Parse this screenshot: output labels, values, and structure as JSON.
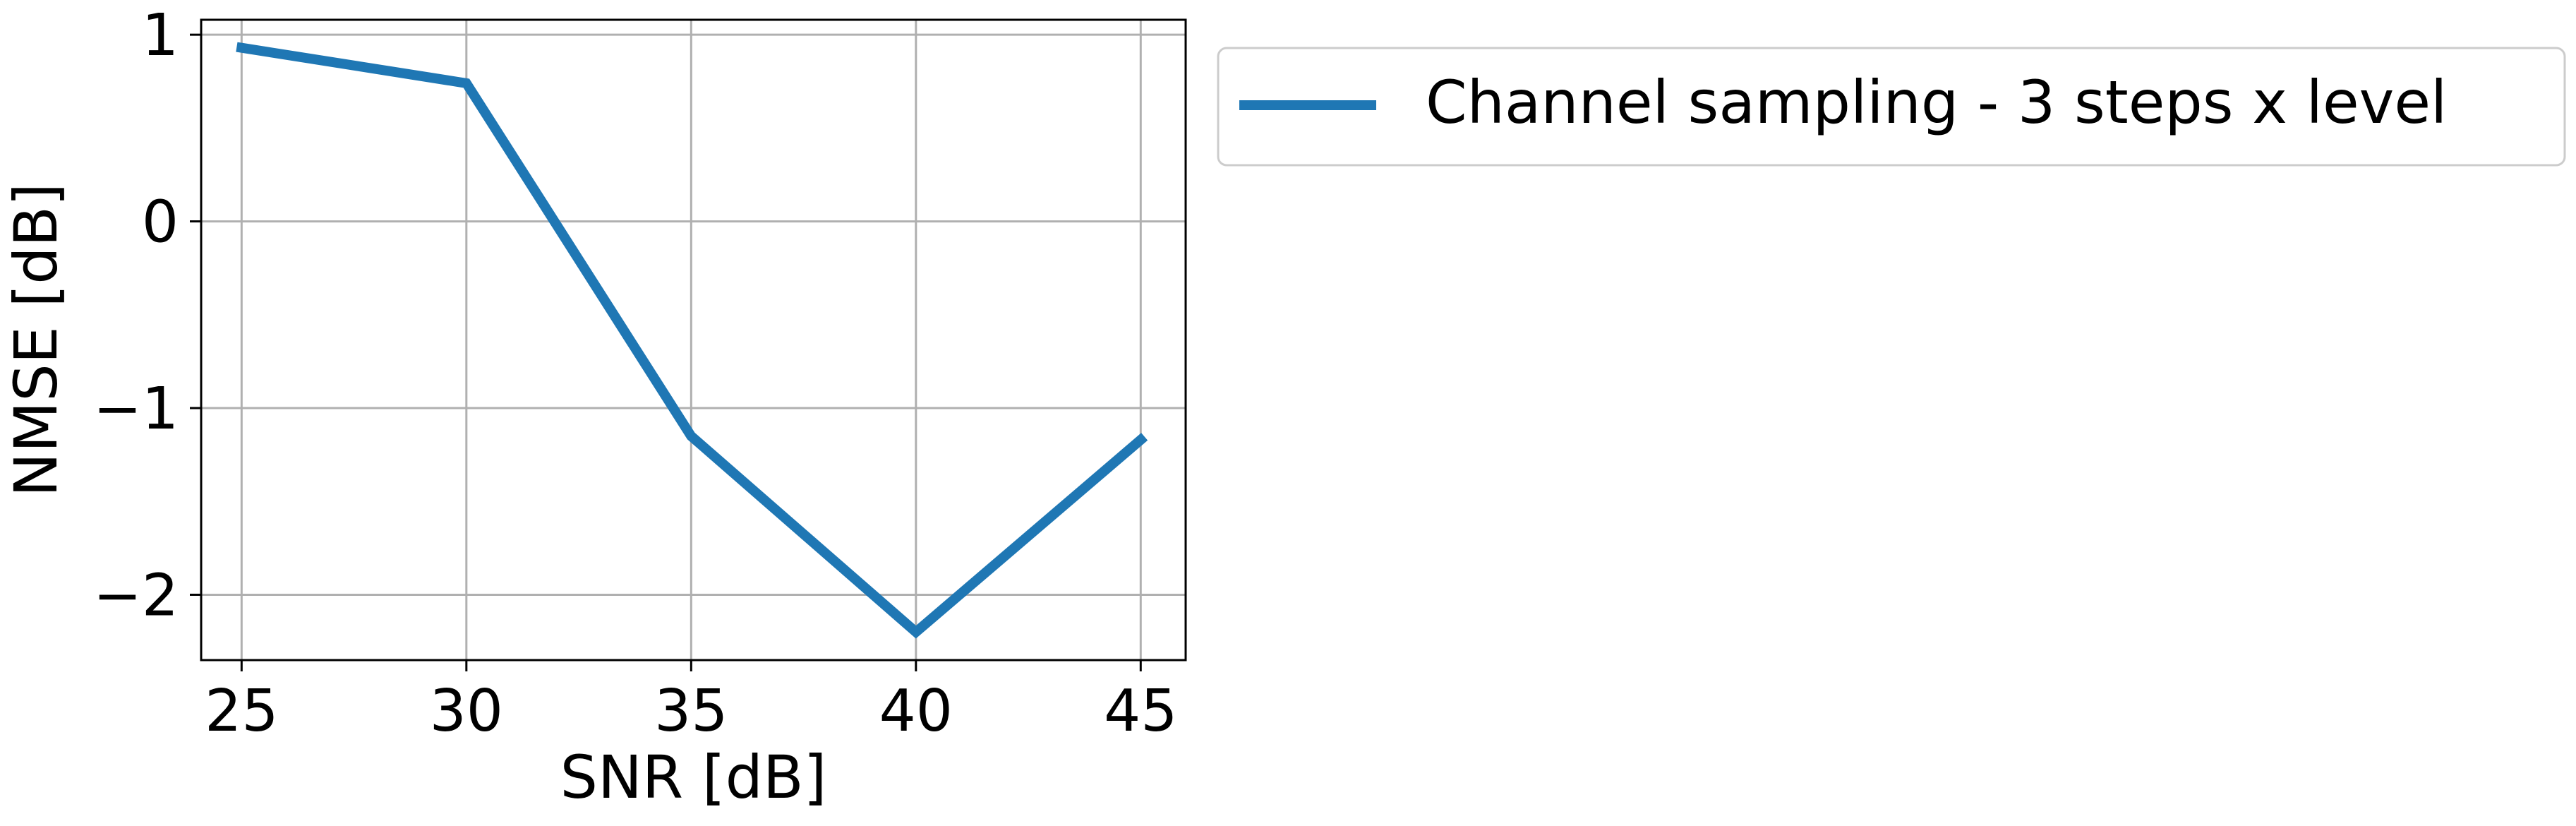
{
  "chart_data": {
    "type": "line",
    "title": "",
    "xlabel": "SNR [dB]",
    "ylabel": "NMSE [dB]",
    "x": [
      25,
      30,
      35,
      40,
      45
    ],
    "xlim": [
      24.1,
      46.0
    ],
    "ylim": [
      -2.35,
      1.08
    ],
    "xticks": [
      25,
      30,
      35,
      40,
      45
    ],
    "yticks": [
      -2,
      -1,
      0,
      1
    ],
    "ytick_labels": [
      "−2",
      "−1",
      "0",
      "1"
    ],
    "grid": true,
    "legend_position": "outside-top-right",
    "series": [
      {
        "name": "Channel sampling - 3 steps x level",
        "color": "#1f77b4",
        "values": [
          0.93,
          0.74,
          -1.15,
          -2.2,
          -1.17
        ]
      }
    ]
  }
}
